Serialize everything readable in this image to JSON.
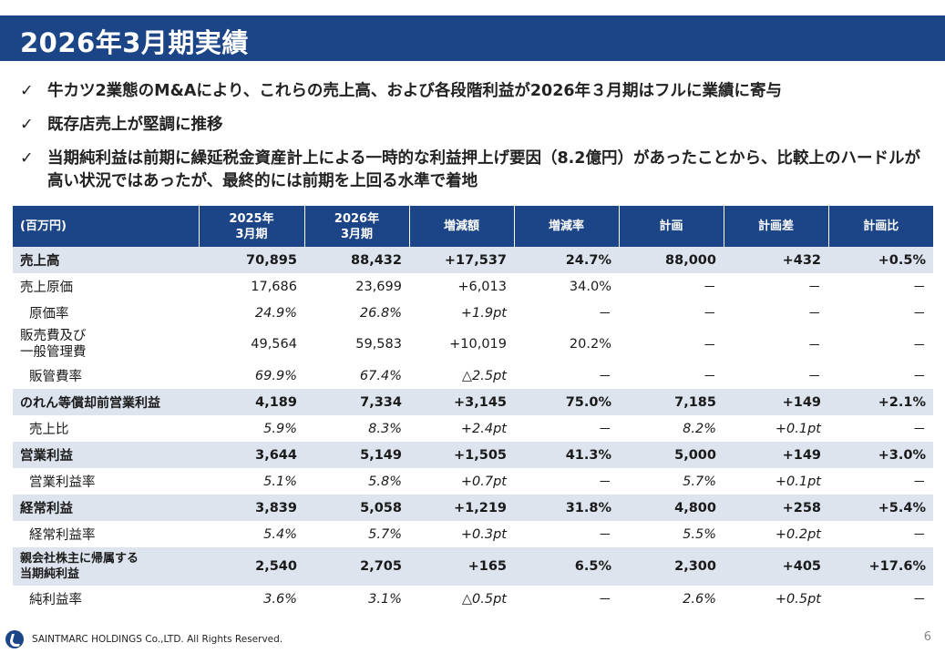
{
  "title": "2026年3月期実績",
  "bullets": [
    "牛カツ2業態のM&Aにより、これらの売上高、および各段階利益が2026年３月期はフルに業績に寄与",
    "既存店売上が堅調に推移",
    "当期純利益は前期に繰延税金資産計上による一時的な利益押上げ要因（8.2億円）があったことから、比較上のハードルが高い状況ではあったが、最終的には前期を上回る水準で着地"
  ],
  "bullet_mark": "✓",
  "table": {
    "headers": {
      "unit": "(百万円)",
      "fy2025_line1": "2025年",
      "fy2025_line2": "3月期",
      "fy2026_line1": "2026年",
      "fy2026_line2": "3月期",
      "change": "増減額",
      "change_rate": "増減率",
      "plan": "計画",
      "plan_diff": "計画差",
      "plan_ratio": "計画比"
    },
    "rows": [
      {
        "label": "売上高",
        "fy2025": "70,895",
        "fy2026": "88,432",
        "change": "+17,537",
        "rate": "24.7%",
        "plan": "88,000",
        "diff": "+432",
        "ratio": "+0.5%"
      },
      {
        "label": "売上原価",
        "fy2025": "17,686",
        "fy2026": "23,699",
        "change": "+6,013",
        "rate": "34.0%",
        "plan": "－",
        "diff": "－",
        "ratio": "－"
      },
      {
        "label": "原価率",
        "fy2025": "24.9%",
        "fy2026": "26.8%",
        "change": "+1.9pt",
        "rate": "－",
        "plan": "－",
        "diff": "－",
        "ratio": "－"
      },
      {
        "label_line1": "販売費及び",
        "label_line2": "一般管理費",
        "fy2025": "49,564",
        "fy2026": "59,583",
        "change": "+10,019",
        "rate": "20.2%",
        "plan": "－",
        "diff": "－",
        "ratio": "－"
      },
      {
        "label": "販管費率",
        "fy2025": "69.9%",
        "fy2026": "67.4%",
        "change": "△2.5pt",
        "rate": "－",
        "plan": "－",
        "diff": "－",
        "ratio": "－"
      },
      {
        "label": "のれん等償却前営業利益",
        "fy2025": "4,189",
        "fy2026": "7,334",
        "change": "+3,145",
        "rate": "75.0%",
        "plan": "7,185",
        "diff": "+149",
        "ratio": "+2.1%"
      },
      {
        "label": "売上比",
        "fy2025": "5.9%",
        "fy2026": "8.3%",
        "change": "+2.4pt",
        "rate": "－",
        "plan": "8.2%",
        "diff": "+0.1pt",
        "ratio": "－"
      },
      {
        "label": "営業利益",
        "fy2025": "3,644",
        "fy2026": "5,149",
        "change": "+1,505",
        "rate": "41.3%",
        "plan": "5,000",
        "diff": "+149",
        "ratio": "+3.0%"
      },
      {
        "label": "営業利益率",
        "fy2025": "5.1%",
        "fy2026": "5.8%",
        "change": "+0.7pt",
        "rate": "－",
        "plan": "5.7%",
        "diff": "+0.1pt",
        "ratio": "－"
      },
      {
        "label": "経常利益",
        "fy2025": "3,839",
        "fy2026": "5,058",
        "change": "+1,219",
        "rate": "31.8%",
        "plan": "4,800",
        "diff": "+258",
        "ratio": "+5.4%"
      },
      {
        "label": "経常利益率",
        "fy2025": "5.4%",
        "fy2026": "5.7%",
        "change": "+0.3pt",
        "rate": "－",
        "plan": "5.5%",
        "diff": "+0.2pt",
        "ratio": "－"
      },
      {
        "label_line1": "親会社株主に帰属する",
        "label_line2": "当期純利益",
        "fy2025": "2,540",
        "fy2026": "2,705",
        "change": "+165",
        "rate": "6.5%",
        "plan": "2,300",
        "diff": "+405",
        "ratio": "+17.6%"
      },
      {
        "label": "純利益率",
        "fy2025": "3.6%",
        "fy2026": "3.1%",
        "change": "△0.5pt",
        "rate": "－",
        "plan": "2.6%",
        "diff": "+0.5pt",
        "ratio": "－"
      }
    ]
  },
  "footer": {
    "copyright": "SAINTMARC HOLDINGS Co.,LTD. All Rights Reserved.",
    "page": "6"
  },
  "colors": {
    "header_bg": "#1c4587",
    "main_row_bg": "#dde4ee"
  }
}
